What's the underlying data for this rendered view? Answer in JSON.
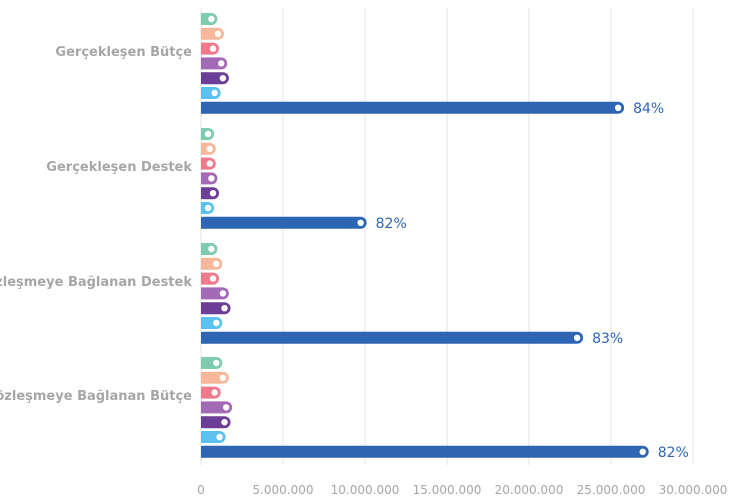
{
  "chart_data": {
    "type": "bar",
    "orientation": "horizontal",
    "bar_style": "rounded-lollipop",
    "categories": [
      "Gerçekleşen Bütçe",
      "Gerçekleşen Destek",
      "Sözleşmeye Bağlanan Destek",
      "Sözleşmeye  Bağlanan Bütçe"
    ],
    "series": [
      {
        "color": "#7ecbb0",
        "values": [
          1000000,
          800000,
          1000000,
          1300000
        ]
      },
      {
        "color": "#f7b79a",
        "values": [
          1400000,
          900000,
          1300000,
          1700000
        ]
      },
      {
        "color": "#ee7a8c",
        "values": [
          1100000,
          900000,
          1100000,
          1200000
        ]
      },
      {
        "color": "#a36ab5",
        "values": [
          1600000,
          1000000,
          1700000,
          1900000
        ]
      },
      {
        "color": "#6a3f95",
        "values": [
          1700000,
          1100000,
          1800000,
          1800000
        ]
      },
      {
        "color": "#5bc2ef",
        "values": [
          1200000,
          800000,
          1300000,
          1500000
        ]
      },
      {
        "color": "#2e66b4",
        "values": [
          25800000,
          10100000,
          23300000,
          27300000
        ],
        "labels": [
          "84%",
          "82%",
          "83%",
          "82%"
        ]
      }
    ],
    "xlim": [
      0,
      30000000
    ],
    "xticks": [
      "0",
      "5.000.000",
      "10.000.000",
      "15.000.000",
      "20.000.000",
      "25.000.000",
      "30.000.000"
    ],
    "grid": "vertical"
  }
}
